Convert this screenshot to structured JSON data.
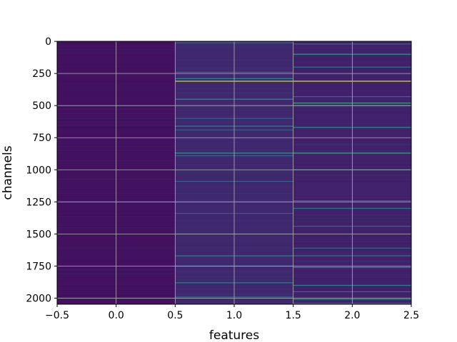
{
  "chart_data": {
    "type": "heatmap",
    "title": "",
    "xlabel": "features",
    "ylabel": "channels",
    "xlim": [
      -0.5,
      2.5
    ],
    "ylim": [
      2047.5,
      -0.5
    ],
    "y_inverted": true,
    "grid": true,
    "colormap": "viridis",
    "n_rows": 2048,
    "n_cols": 3,
    "column_centers": [
      0,
      1,
      2
    ],
    "column_base_values": [
      0.05,
      0.12,
      0.1
    ],
    "x_ticks": [
      {
        "value": -0.5,
        "label": "−0.5"
      },
      {
        "value": 0.0,
        "label": "0.0"
      },
      {
        "value": 0.5,
        "label": "0.5"
      },
      {
        "value": 1.0,
        "label": "1.0"
      },
      {
        "value": 1.5,
        "label": "1.5"
      },
      {
        "value": 2.0,
        "label": "2.0"
      },
      {
        "value": 2.5,
        "label": "2.5"
      }
    ],
    "y_ticks": [
      {
        "value": 0,
        "label": "0"
      },
      {
        "value": 250,
        "label": "250"
      },
      {
        "value": 500,
        "label": "500"
      },
      {
        "value": 750,
        "label": "750"
      },
      {
        "value": 1000,
        "label": "1000"
      },
      {
        "value": 1250,
        "label": "1250"
      },
      {
        "value": 1500,
        "label": "1500"
      },
      {
        "value": 1750,
        "label": "1750"
      },
      {
        "value": 2000,
        "label": "2000"
      }
    ],
    "highlight_rows": [
      {
        "col": 1,
        "row": 10,
        "value": 0.35
      },
      {
        "col": 1,
        "row": 240,
        "value": 0.3
      },
      {
        "col": 1,
        "row": 290,
        "value": 0.45
      },
      {
        "col": 1,
        "row": 310,
        "value": 0.95
      },
      {
        "col": 1,
        "row": 450,
        "value": 0.5
      },
      {
        "col": 1,
        "row": 600,
        "value": 0.3
      },
      {
        "col": 1,
        "row": 660,
        "value": 0.45
      },
      {
        "col": 1,
        "row": 690,
        "value": 0.3
      },
      {
        "col": 1,
        "row": 870,
        "value": 0.55
      },
      {
        "col": 1,
        "row": 890,
        "value": 0.3
      },
      {
        "col": 1,
        "row": 1090,
        "value": 0.3
      },
      {
        "col": 1,
        "row": 1340,
        "value": 0.3
      },
      {
        "col": 1,
        "row": 1500,
        "value": 0.3
      },
      {
        "col": 1,
        "row": 1670,
        "value": 0.45
      },
      {
        "col": 1,
        "row": 1750,
        "value": 0.55
      },
      {
        "col": 1,
        "row": 1880,
        "value": 0.45
      },
      {
        "col": 1,
        "row": 1990,
        "value": 0.3
      },
      {
        "col": 2,
        "row": 20,
        "value": 0.35
      },
      {
        "col": 2,
        "row": 100,
        "value": 0.55
      },
      {
        "col": 2,
        "row": 200,
        "value": 0.4
      },
      {
        "col": 2,
        "row": 310,
        "value": 0.95
      },
      {
        "col": 2,
        "row": 430,
        "value": 0.35
      },
      {
        "col": 2,
        "row": 480,
        "value": 0.6
      },
      {
        "col": 2,
        "row": 500,
        "value": 0.35
      },
      {
        "col": 2,
        "row": 670,
        "value": 0.5
      },
      {
        "col": 2,
        "row": 870,
        "value": 0.6
      },
      {
        "col": 2,
        "row": 1000,
        "value": 0.35
      },
      {
        "col": 2,
        "row": 1240,
        "value": 0.3
      },
      {
        "col": 2,
        "row": 1300,
        "value": 0.4
      },
      {
        "col": 2,
        "row": 1440,
        "value": 0.3
      },
      {
        "col": 2,
        "row": 1610,
        "value": 0.35
      },
      {
        "col": 2,
        "row": 1670,
        "value": 0.4
      },
      {
        "col": 2,
        "row": 1760,
        "value": 0.5
      },
      {
        "col": 2,
        "row": 1900,
        "value": 0.45
      },
      {
        "col": 2,
        "row": 1950,
        "value": 0.35
      },
      {
        "col": 2,
        "row": 2010,
        "value": 0.4
      },
      {
        "col": 2,
        "row": 2040,
        "value": 0.35
      }
    ]
  }
}
